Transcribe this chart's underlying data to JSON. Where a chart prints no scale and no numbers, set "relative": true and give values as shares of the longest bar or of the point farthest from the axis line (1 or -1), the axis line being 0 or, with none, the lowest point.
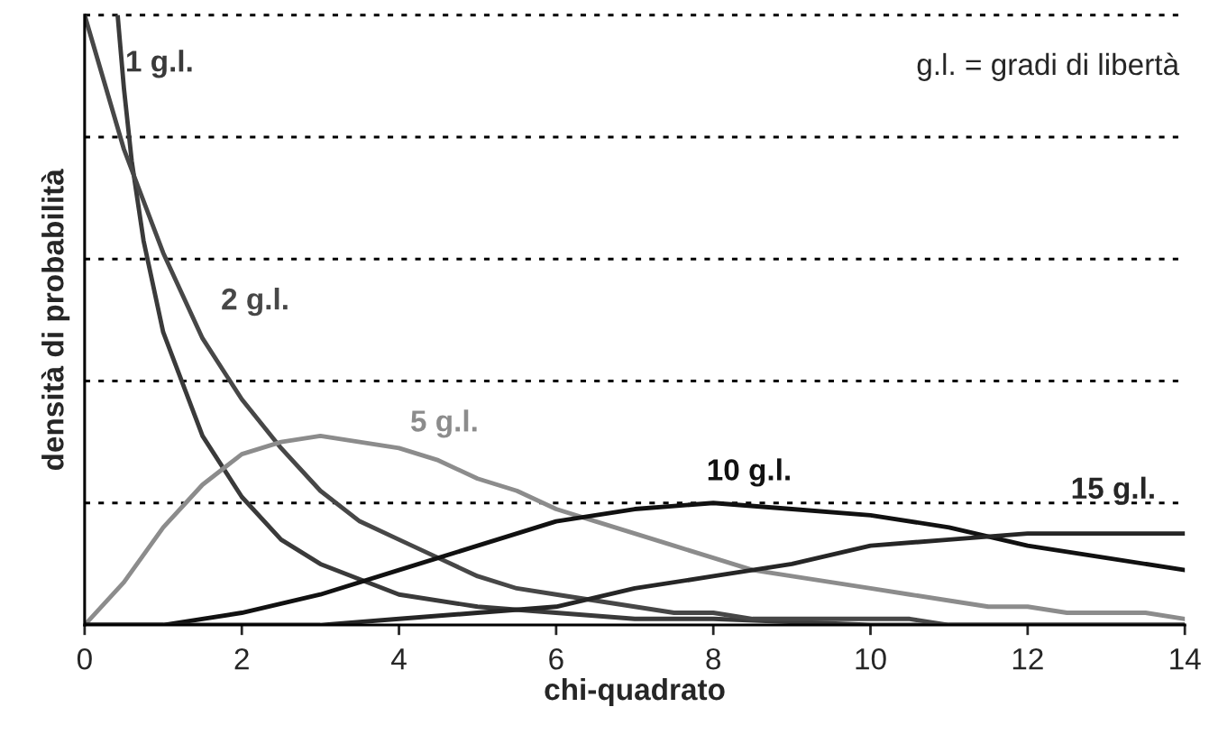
{
  "chart_data": {
    "type": "line",
    "relative": true,
    "xlabel": "chi-quadrato",
    "ylabel": "densità di probabilità",
    "xlim": [
      0,
      14
    ],
    "xticks": [
      0,
      2,
      4,
      6,
      8,
      10,
      12,
      14
    ],
    "series": [
      {
        "name": "1 g.l.",
        "color": "#3a3a3a",
        "x": [
          0.42,
          0.5,
          0.6,
          0.75,
          1,
          1.5,
          2,
          2.5,
          3,
          4,
          5,
          6,
          7,
          8,
          10,
          12,
          14
        ],
        "values": [
          1.0,
          0.88,
          0.76,
          0.63,
          0.48,
          0.31,
          0.21,
          0.14,
          0.1,
          0.05,
          0.03,
          0.02,
          0.01,
          0.01,
          0.0,
          0.0,
          0.0
        ]
      },
      {
        "name": "2 g.l.",
        "color": "#474747",
        "x": [
          0,
          0.5,
          1,
          1.5,
          2,
          2.5,
          3,
          3.5,
          4,
          4.5,
          5,
          5.5,
          6,
          6.5,
          7,
          7.5,
          8,
          8.5,
          9,
          9.5,
          10,
          10.5,
          11,
          12,
          13,
          14
        ],
        "values": [
          1.0,
          0.78,
          0.61,
          0.47,
          0.37,
          0.29,
          0.22,
          0.17,
          0.14,
          0.11,
          0.08,
          0.06,
          0.05,
          0.04,
          0.03,
          0.02,
          0.02,
          0.01,
          0.01,
          0.01,
          0.01,
          0.01,
          0.0,
          0.0,
          0.0,
          0.0
        ]
      },
      {
        "name": "5 g.l.",
        "color": "#8c8c8c",
        "x": [
          0,
          0.5,
          1,
          1.5,
          2,
          2.5,
          3,
          3.5,
          4,
          4.5,
          5,
          5.5,
          6,
          6.5,
          7,
          7.5,
          8,
          8.5,
          9,
          9.5,
          10,
          10.5,
          11,
          11.5,
          12,
          12.5,
          13,
          13.5,
          14
        ],
        "values": [
          0.0,
          0.07,
          0.16,
          0.23,
          0.28,
          0.3,
          0.31,
          0.3,
          0.29,
          0.27,
          0.24,
          0.22,
          0.19,
          0.17,
          0.15,
          0.13,
          0.11,
          0.09,
          0.08,
          0.07,
          0.06,
          0.05,
          0.04,
          0.03,
          0.03,
          0.02,
          0.02,
          0.02,
          0.01
        ]
      },
      {
        "name": "10 g.l.",
        "color": "#111111",
        "x": [
          0,
          1,
          2,
          3,
          4,
          5,
          6,
          7,
          8,
          9,
          10,
          11,
          12,
          13,
          14
        ],
        "values": [
          0.0,
          0.0,
          0.02,
          0.05,
          0.09,
          0.13,
          0.17,
          0.19,
          0.2,
          0.19,
          0.18,
          0.16,
          0.13,
          0.11,
          0.09
        ]
      },
      {
        "name": "15 g.l.",
        "color": "#262626",
        "x": [
          0,
          1,
          2,
          3,
          4,
          5,
          6,
          7,
          8,
          9,
          10,
          11,
          12,
          13,
          14
        ],
        "values": [
          0.0,
          0.0,
          0.0,
          0.0,
          0.01,
          0.02,
          0.03,
          0.06,
          0.08,
          0.1,
          0.13,
          0.14,
          0.15,
          0.15,
          0.15
        ]
      }
    ],
    "annotations": [
      "g.l. = gradi di libertà"
    ],
    "ref_lines": [
      {
        "axis": "y",
        "value": 0.2,
        "line_style": "dotted",
        "color": "#000000"
      },
      {
        "axis": "y",
        "value": 0.4,
        "line_style": "dotted",
        "color": "#000000"
      },
      {
        "axis": "y",
        "value": 0.6,
        "line_style": "dotted",
        "color": "#000000"
      },
      {
        "axis": "y",
        "value": 0.8,
        "line_style": "dotted",
        "color": "#000000"
      },
      {
        "axis": "y",
        "value": 1.0,
        "line_style": "dotted",
        "color": "#000000"
      }
    ],
    "grid": false,
    "legend": false
  }
}
